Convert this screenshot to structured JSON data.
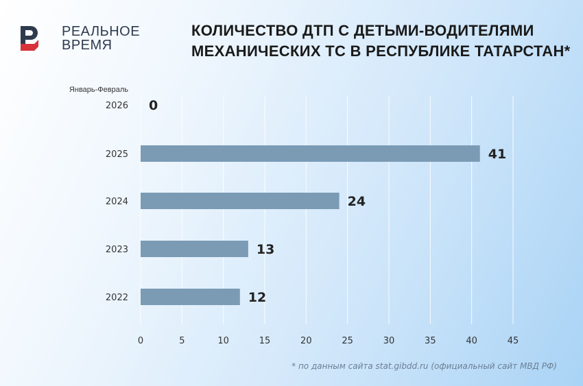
{
  "brand": {
    "line1": "РЕАЛЬНОЕ",
    "line2": "ВРЕМЯ",
    "colors": {
      "dark": "#2e3a4d",
      "red": "#d8323a"
    }
  },
  "title_line1": "КОЛИЧЕСТВО ДТП С ДЕТЬМИ-ВОДИТЕЛЯМИ",
  "title_line2": "МЕХАНИЧЕСКИХ ТС В РЕСПУБЛИКЕ ТАТАРСТАН*",
  "footnote": "* по данным сайта stat.gibdd.ru (официальный сайт МВД РФ)",
  "chart_data": {
    "type": "bar",
    "orientation": "horizontal",
    "title": "КОЛИЧЕСТВО ДТП С ДЕТЬМИ-ВОДИТЕЛЯМИ МЕХАНИЧЕСКИХ ТС В РЕСПУБЛИКЕ ТАТАРСТАН*",
    "category_note": "Январь-Февраль",
    "categories": [
      "2026",
      "2025",
      "2024",
      "2023",
      "2022"
    ],
    "values": [
      0,
      41,
      24,
      13,
      12
    ],
    "data_labels": [
      "0",
      "41",
      "24",
      "13",
      "12"
    ],
    "xlim": [
      0,
      45
    ],
    "xticks": [
      "0",
      "5",
      "10",
      "15",
      "20",
      "25",
      "30",
      "35",
      "40",
      "45"
    ],
    "grid": "vertical",
    "bar_color": "#7b9bb5"
  }
}
